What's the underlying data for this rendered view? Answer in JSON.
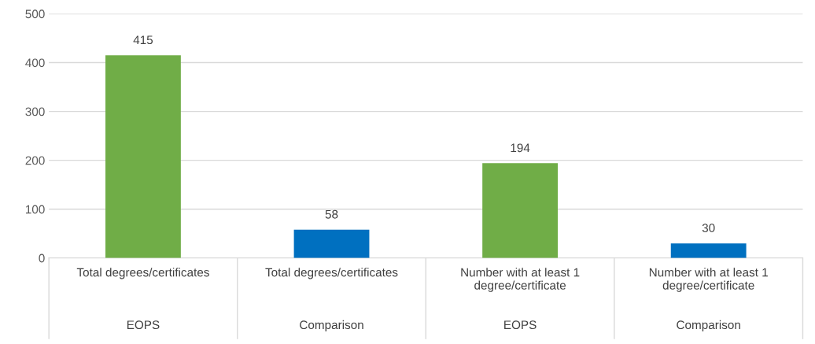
{
  "chart_data": {
    "type": "bar",
    "categories": [
      "Total degrees/certificates\nEOPS",
      "Total degrees/certificates\nComparison",
      "Number with at least 1\ndegree/certificate\nEOPS",
      "Number with at least 1\ndegree/certificate\nComparison"
    ],
    "values": [
      415,
      58,
      194,
      30
    ],
    "colors": [
      "#70ad47",
      "#0070c0",
      "#70ad47",
      "#0070c0"
    ],
    "ylim": [
      0,
      500
    ],
    "yticks": [
      0,
      100,
      200,
      300,
      400,
      500
    ],
    "grid": "y",
    "data_labels": true
  }
}
